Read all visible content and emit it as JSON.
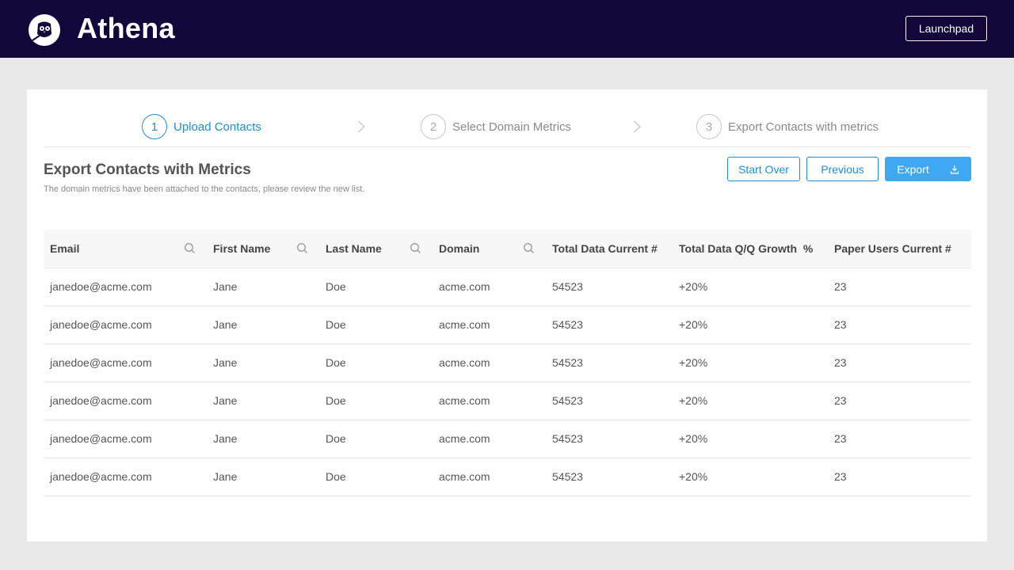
{
  "header": {
    "brand": "Athena",
    "launchpad_label": "Launchpad"
  },
  "steps": [
    {
      "num": "1",
      "label": "Upload Contacts",
      "active": true
    },
    {
      "num": "2",
      "label": "Select Domain Metrics",
      "active": false
    },
    {
      "num": "3",
      "label": "Export Contacts with metrics",
      "active": false
    }
  ],
  "page": {
    "title": "Export Contacts with Metrics",
    "subtitle": "The domain metrics have been attached to the contacts, please review the new list."
  },
  "actions": {
    "start_over": "Start Over",
    "previous": "Previous",
    "export": "Export"
  },
  "table": {
    "columns": [
      "Email",
      "First Name",
      "Last Name",
      "Domain",
      "Total Data Current #",
      "Total Data Q/Q Growth  %",
      "Paper Users Current #"
    ],
    "rows": [
      [
        "janedoe@acme.com",
        "Jane",
        "Doe",
        "acme.com",
        "54523",
        "+20%",
        "23"
      ],
      [
        "janedoe@acme.com",
        "Jane",
        "Doe",
        "acme.com",
        "54523",
        "+20%",
        "23"
      ],
      [
        "janedoe@acme.com",
        "Jane",
        "Doe",
        "acme.com",
        "54523",
        "+20%",
        "23"
      ],
      [
        "janedoe@acme.com",
        "Jane",
        "Doe",
        "acme.com",
        "54523",
        "+20%",
        "23"
      ],
      [
        "janedoe@acme.com",
        "Jane",
        "Doe",
        "acme.com",
        "54523",
        "+20%",
        "23"
      ],
      [
        "janedoe@acme.com",
        "Jane",
        "Doe",
        "acme.com",
        "54523",
        "+20%",
        "23"
      ]
    ]
  },
  "colors": {
    "header_bg": "#12063a",
    "accent": "#1e8ee0",
    "primary_button": "#3fa8f5"
  }
}
